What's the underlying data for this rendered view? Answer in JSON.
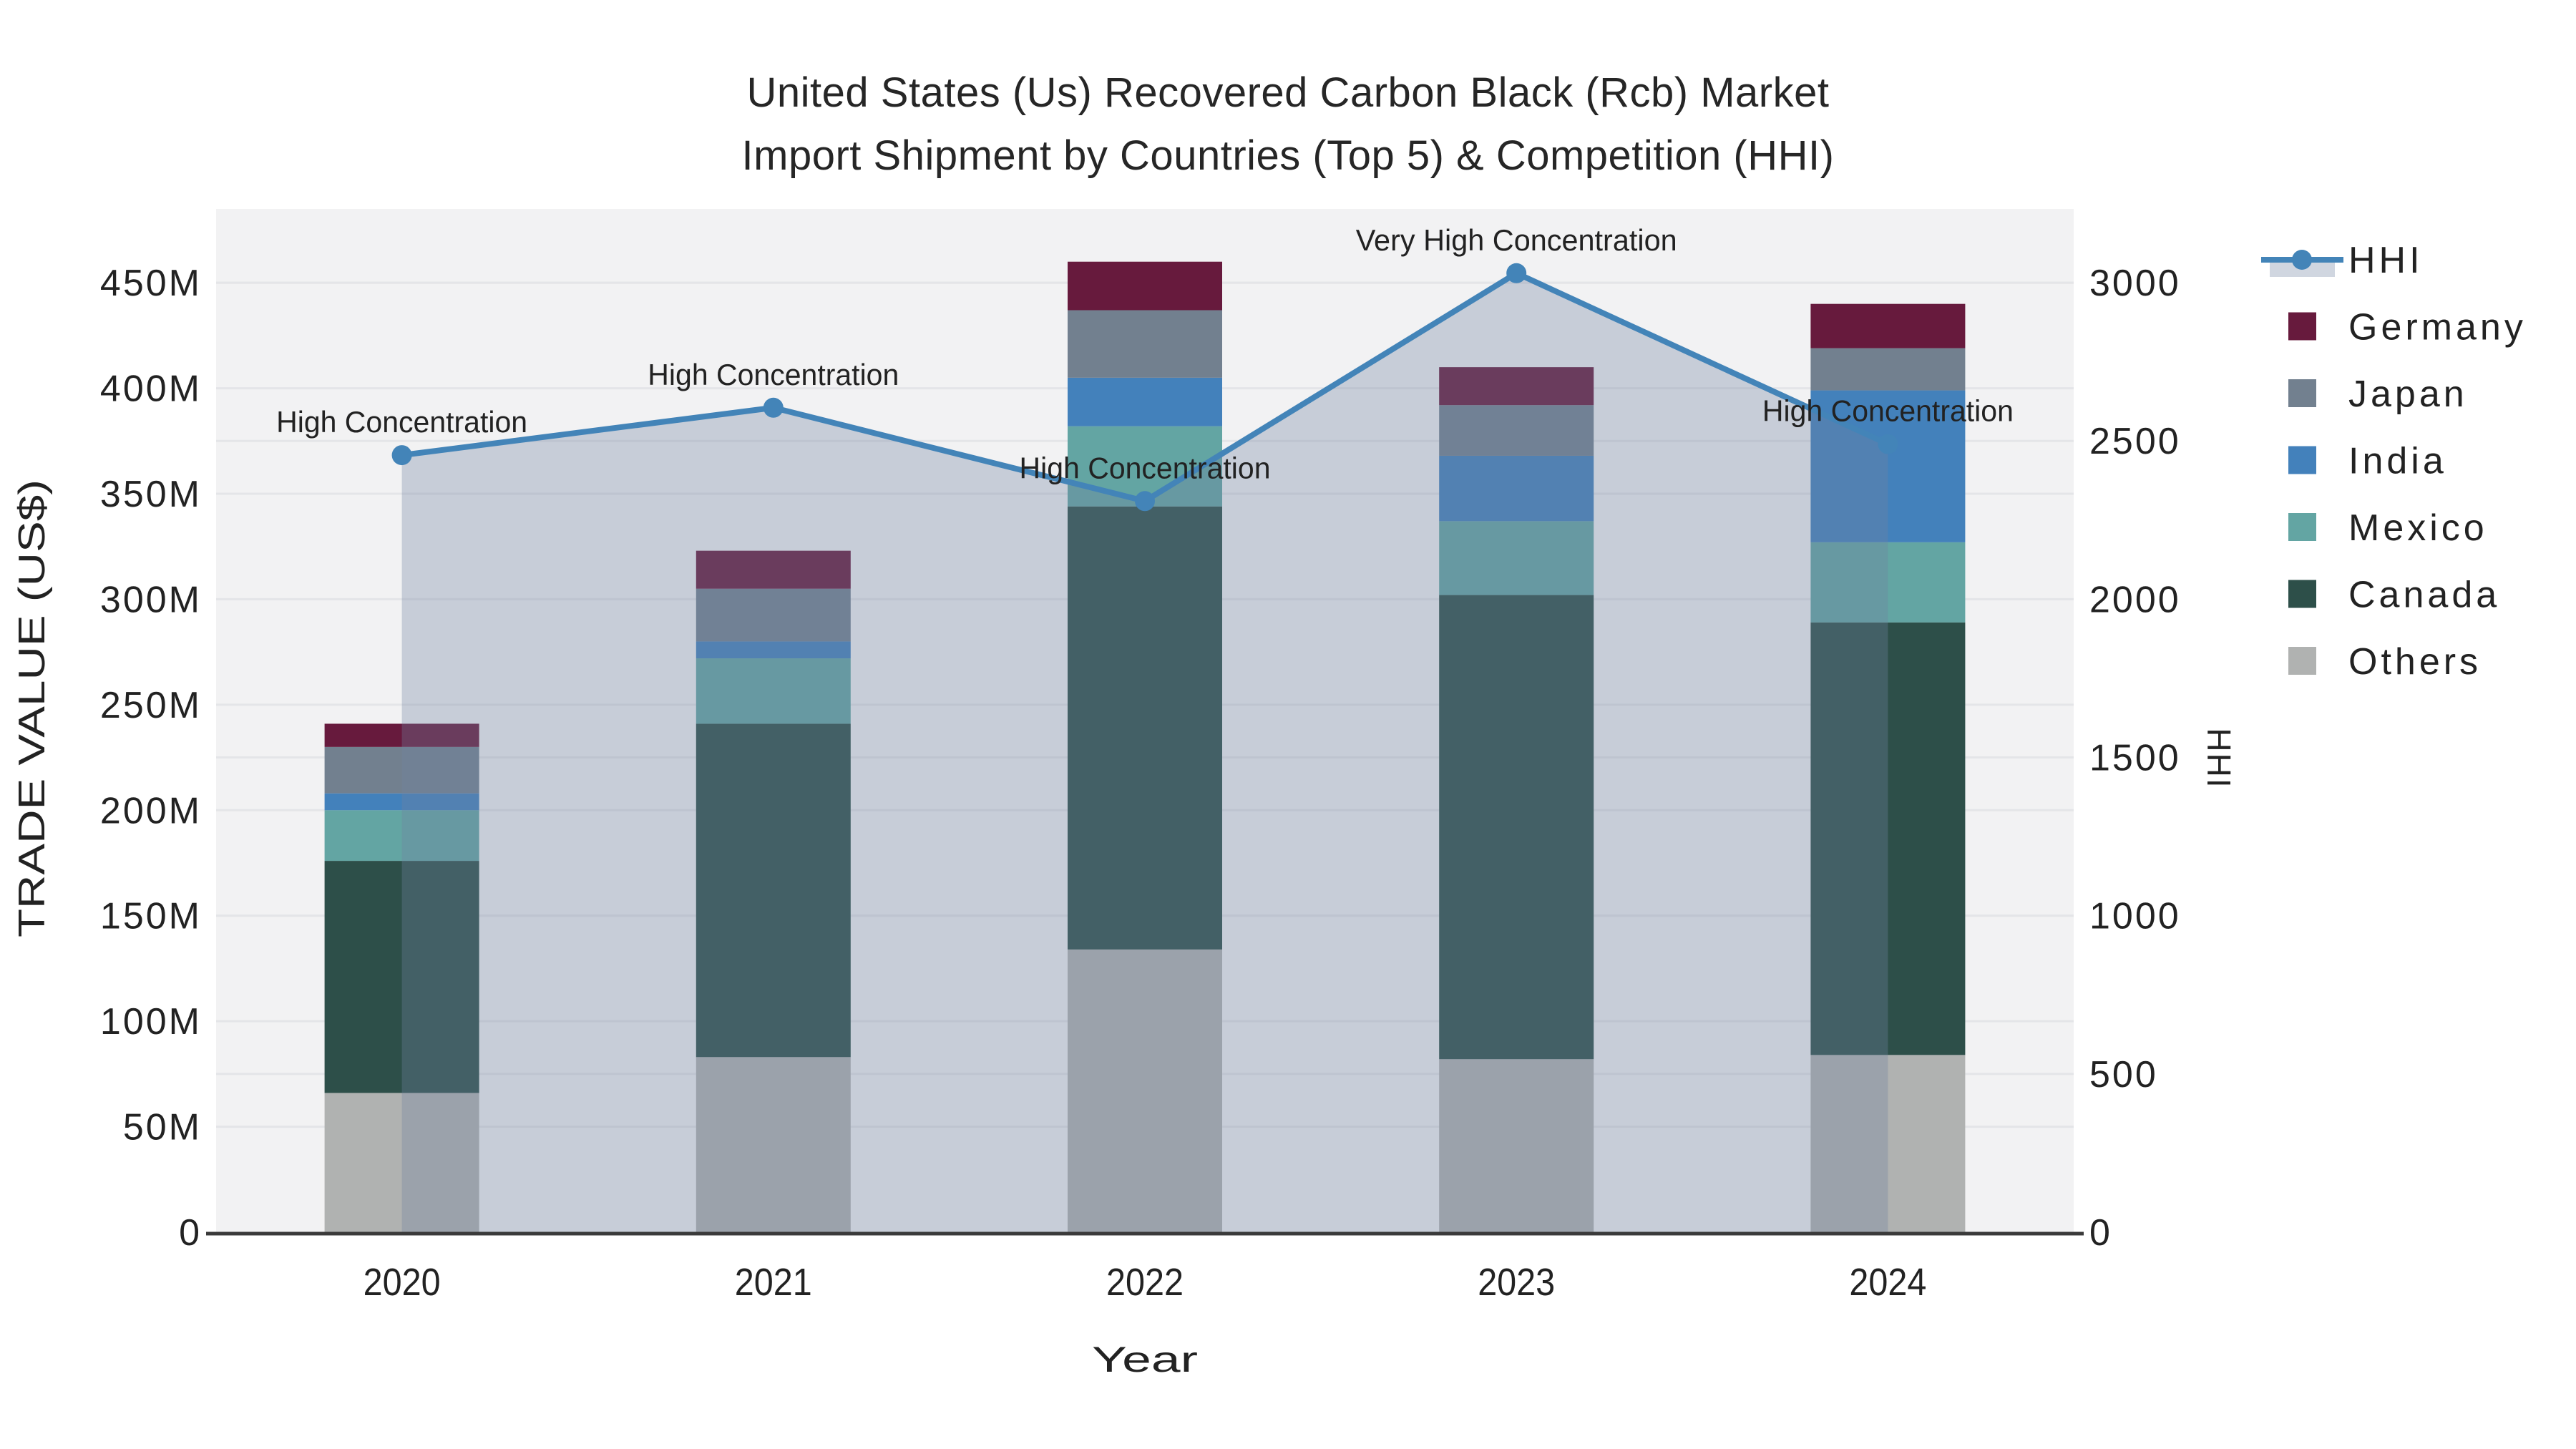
{
  "title": {
    "line1": "United States (Us) Recovered Carbon Black (Rcb) Market",
    "line2": "Import Shipment by Countries (Top 5) & Competition (HHI)"
  },
  "chart_data": {
    "type": "bar",
    "subtype": "stacked-bars-with-overlaid-line-area",
    "unit_left": "M US$",
    "categories": [
      "2020",
      "2021",
      "2022",
      "2023",
      "2024"
    ],
    "stack_order_bottom_to_top": [
      "Others",
      "Canada",
      "Mexico",
      "India",
      "Japan",
      "Germany"
    ],
    "series": [
      {
        "name": "Others",
        "color": "#b0b2b1",
        "values": [
          66,
          83,
          134,
          82,
          84
        ]
      },
      {
        "name": "Canada",
        "color": "#2d4f49",
        "values": [
          110,
          158,
          210,
          220,
          205
        ]
      },
      {
        "name": "Mexico",
        "color": "#63a5a3",
        "values": [
          24,
          31,
          38,
          35,
          38
        ]
      },
      {
        "name": "India",
        "color": "#4381bb",
        "values": [
          8,
          8,
          23,
          31,
          72
        ]
      },
      {
        "name": "Japan",
        "color": "#72808f",
        "values": [
          22,
          25,
          32,
          24,
          20
        ]
      },
      {
        "name": "Germany",
        "color": "#671a3d",
        "values": [
          11,
          18,
          23,
          18,
          21
        ]
      }
    ],
    "bar_totals": [
      241,
      323,
      460,
      410,
      440
    ],
    "line_series": {
      "name": "HHI",
      "values": [
        2455,
        2605,
        2310,
        3030,
        2490
      ],
      "color": "#4384b8",
      "area_fill": "rgba(111,132,160,0.33)"
    },
    "annotations": [
      {
        "x": "2020",
        "text": "High Concentration"
      },
      {
        "x": "2021",
        "text": "High Concentration"
      },
      {
        "x": "2022",
        "text": "High Concentration"
      },
      {
        "x": "2023",
        "text": "Very High Concentration"
      },
      {
        "x": "2024",
        "text": "High Concentration"
      }
    ],
    "xlabel": "Year",
    "ylabel_left": "TRADE VALUE (US$)",
    "ylabel_right": "HHI",
    "yticks_left": [
      [
        0,
        "0"
      ],
      [
        50,
        "50M"
      ],
      [
        100,
        "100M"
      ],
      [
        150,
        "150M"
      ],
      [
        200,
        "200M"
      ],
      [
        250,
        "250M"
      ],
      [
        300,
        "300M"
      ],
      [
        350,
        "350M"
      ],
      [
        400,
        "400M"
      ],
      [
        450,
        "450M"
      ]
    ],
    "yticks_right": [
      [
        0,
        "0"
      ],
      [
        500,
        "500"
      ],
      [
        1000,
        "1000"
      ],
      [
        1500,
        "1500"
      ],
      [
        2000,
        "2000"
      ],
      [
        2500,
        "2500"
      ],
      [
        3000,
        "3000"
      ]
    ],
    "ylim_left": [
      0,
      485
    ],
    "ylim_right": [
      0,
      3233
    ],
    "grid": true,
    "legend": {
      "position": "right",
      "items": [
        "HHI",
        "Germany",
        "Japan",
        "India",
        "Mexico",
        "Canada",
        "Others"
      ]
    },
    "colors": {
      "plot_bg": "#f2f2f3",
      "grid": "#e4e5e8",
      "axis_line": "#3a3a3a",
      "text": "#222222"
    }
  }
}
